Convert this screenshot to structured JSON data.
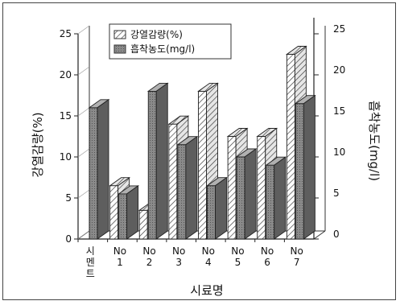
{
  "chart_data": {
    "type": "bar",
    "categories": [
      [
        "시",
        "멘",
        "트"
      ],
      [
        "No",
        "1"
      ],
      [
        "No",
        "2"
      ],
      [
        "No",
        "3"
      ],
      [
        "No",
        "4"
      ],
      [
        "No",
        "5"
      ],
      [
        "No",
        "6"
      ],
      [
        "No",
        "7"
      ]
    ],
    "series": [
      {
        "name": "강열감량(%)",
        "axis": "left",
        "pattern": "hatch",
        "values": [
          0,
          6.5,
          3.5,
          14,
          18,
          12.5,
          12.5,
          22.5
        ]
      },
      {
        "name": "흡착농도(mg/l)",
        "axis": "right",
        "pattern": "dark",
        "values": [
          16,
          5.5,
          18,
          11.5,
          6.5,
          10,
          9,
          16.5
        ]
      }
    ],
    "xlabel": "시료명",
    "ylabel": "강열감량(%)",
    "y2label": "흡착농도(mg/l)",
    "ylim": [
      0,
      25
    ],
    "y2lim": [
      0,
      25
    ],
    "yticks": [
      0,
      5,
      10,
      15,
      20,
      25
    ],
    "y2ticks": [
      0,
      5,
      10,
      15,
      20,
      25
    ],
    "legend": "top-left",
    "grid": false,
    "colors": {
      "hatch_fill": "#ffffff",
      "hatch_line": "#333333",
      "dark_front": "#8a8a8a",
      "dark_top": "#b0b0b0",
      "dark_side": "#5e5e5e",
      "axis": "#222222"
    }
  }
}
